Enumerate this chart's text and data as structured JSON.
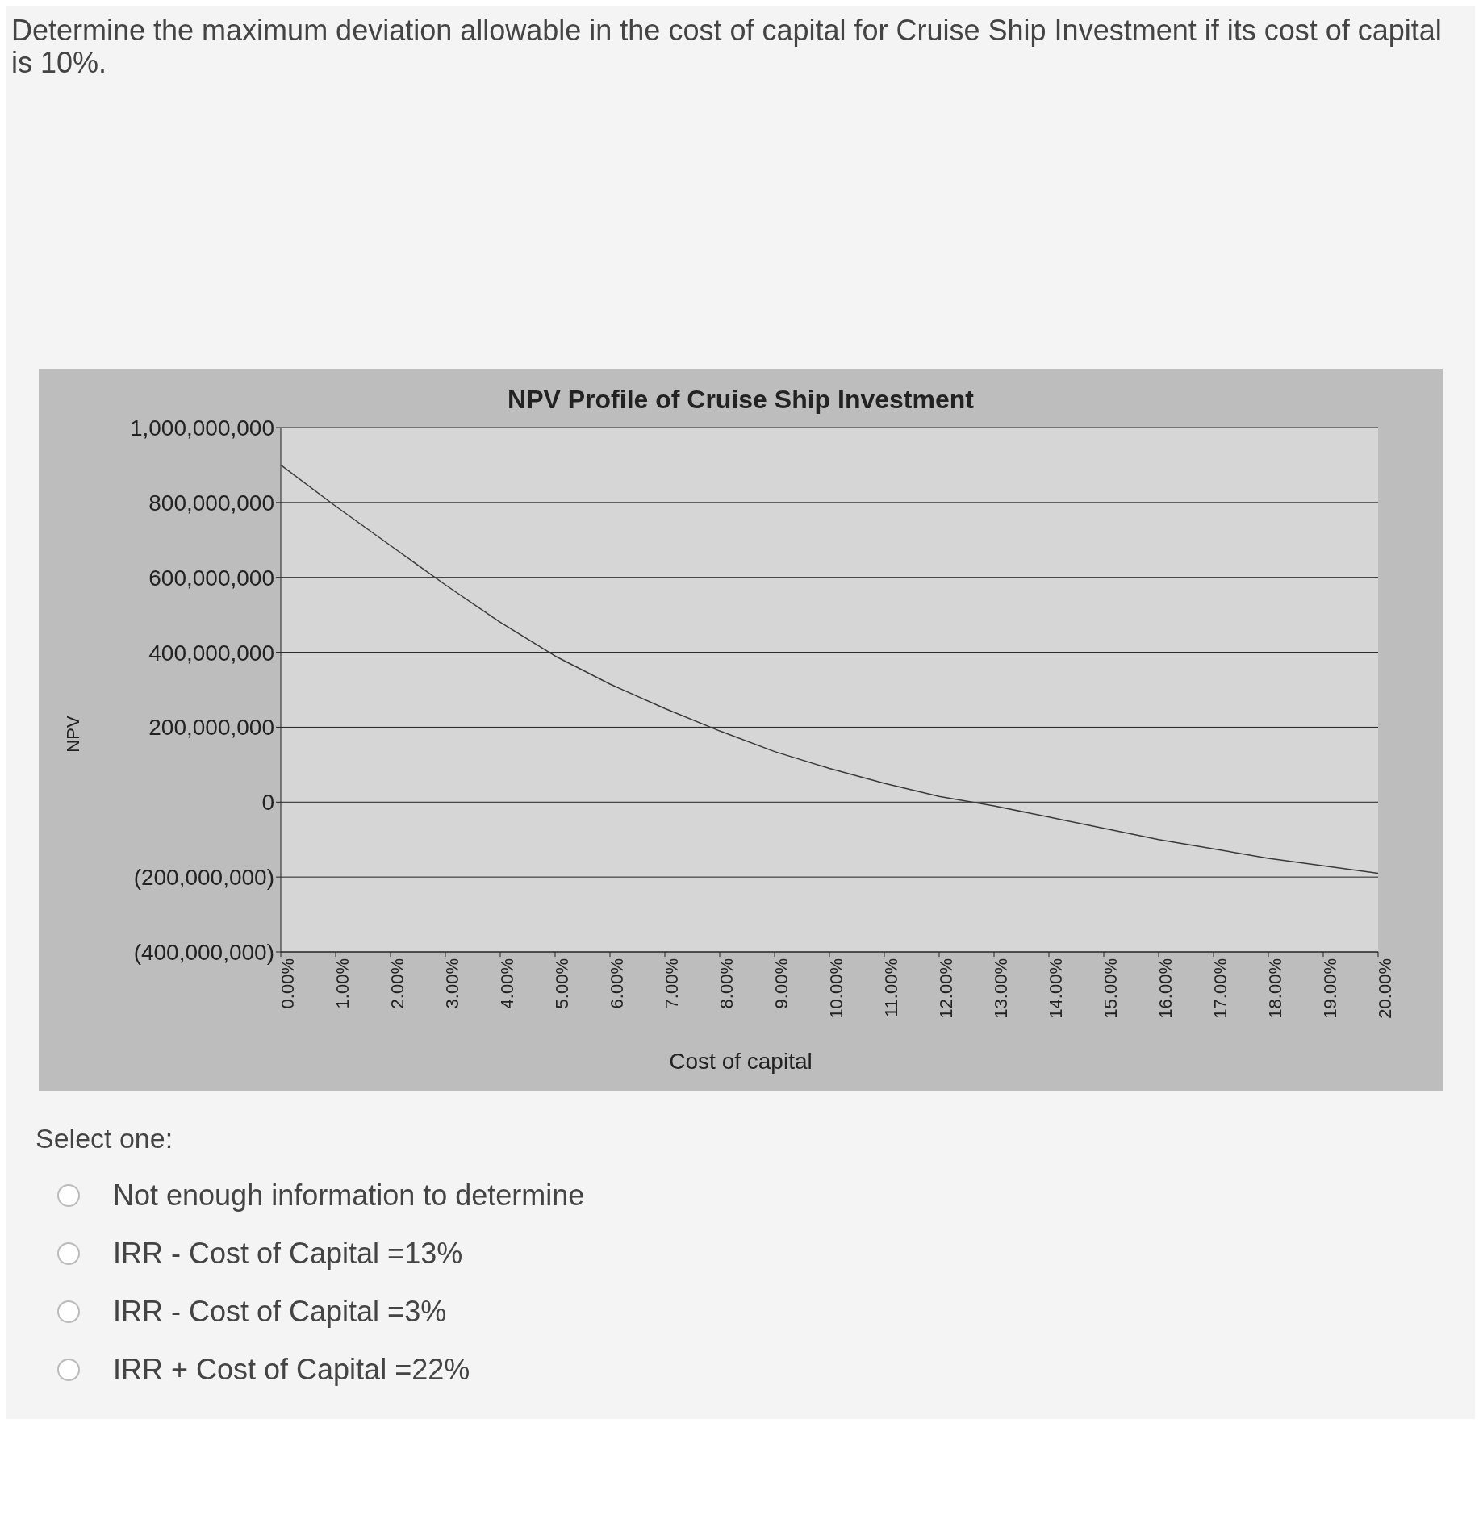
{
  "chart_data": {
    "type": "line",
    "title": "NPV Profile of Cruise Ship Investment",
    "xlabel": "Cost of capital",
    "ylabel": "NPV",
    "categories": [
      "0.00%",
      "1.00%",
      "2.00%",
      "3.00%",
      "4.00%",
      "5.00%",
      "6.00%",
      "7.00%",
      "8.00%",
      "9.00%",
      "10.00%",
      "11.00%",
      "12.00%",
      "13.00%",
      "14.00%",
      "15.00%",
      "16.00%",
      "17.00%",
      "18.00%",
      "19.00%",
      "20.00%"
    ],
    "series": [
      {
        "color": "#3a3a3a",
        "values": [
          900000000,
          790000000,
          685000000,
          580000000,
          480000000,
          390000000,
          315000000,
          250000000,
          190000000,
          135000000,
          90000000,
          50000000,
          15000000,
          -10000000,
          -40000000,
          -70000000,
          -100000000,
          -125000000,
          -150000000,
          -170000000,
          -190000000
        ]
      }
    ],
    "ylim": [
      -400000000,
      1000000000
    ],
    "yticks": [
      {
        "value": -400000000,
        "label": "(400,000,000)"
      },
      {
        "value": -200000000,
        "label": "(200,000,000)"
      },
      {
        "value": 0,
        "label": "0"
      },
      {
        "value": 200000000,
        "label": "200,000,000"
      },
      {
        "value": 400000000,
        "label": "400,000,000"
      },
      {
        "value": 600000000,
        "label": "600,000,000"
      },
      {
        "value": 800000000,
        "label": "800,000,000"
      },
      {
        "value": 1000000000,
        "label": "1,000,000,000"
      }
    ],
    "grid": "y",
    "marker": "none",
    "line_style": "solid",
    "legend": false,
    "annotations": [
      "Determine the maximum deviation allowable in the cost of capital for Cruise Ship Investment if its cost of capital is 10%.",
      "Select one:",
      "Not enough information to determine",
      "IRR - Cost of Capital =13%",
      "IRR - Cost of Capital =3%",
      "IRR + Cost of Capital =22%"
    ]
  }
}
